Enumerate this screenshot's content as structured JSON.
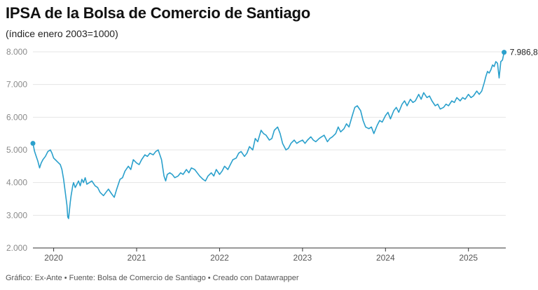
{
  "header": {
    "title": "IPSA de la Bolsa de Comercio de Santiago",
    "subtitle": "(índice enero 2003=1000)"
  },
  "footer": {
    "text": "Gráfico: Ex-Ante • Fuente: Bolsa de Comercio de Santiago • Creado con Datawrapper"
  },
  "colors": {
    "line": "#2aa0cc",
    "grid": "#e5e5e5"
  },
  "chart_data": {
    "type": "line",
    "title": "IPSA de la Bolsa de Comercio de Santiago",
    "subtitle": "(índice enero 2003=1000)",
    "xlabel": "",
    "ylabel": "",
    "grid": true,
    "ylim": [
      2000,
      8000
    ],
    "xlim": [
      2019.75,
      2025.45
    ],
    "y_ticks": [
      2000,
      3000,
      4000,
      5000,
      6000,
      7000,
      8000
    ],
    "y_tick_labels": [
      "2.000",
      "3.000",
      "4.000",
      "5.000",
      "6.000",
      "7.000",
      "8.000"
    ],
    "x_ticks": [
      2020,
      2021,
      2022,
      2023,
      2024,
      2025
    ],
    "x_tick_labels": [
      "2020",
      "2021",
      "2022",
      "2023",
      "2024",
      "2025"
    ],
    "end_label": "7.986,8",
    "series": [
      {
        "x": [
          2019.75,
          2019.77,
          2019.79,
          2019.81,
          2019.83,
          2019.85,
          2019.87,
          2019.9,
          2019.93,
          2019.96,
          2019.98,
          2020.0,
          2020.02,
          2020.04,
          2020.06,
          2020.08,
          2020.1,
          2020.12,
          2020.14,
          2020.16,
          2020.17,
          2020.18,
          2020.19,
          2020.2,
          2020.21,
          2020.22,
          2020.23,
          2020.24,
          2020.26,
          2020.28,
          2020.3,
          2020.32,
          2020.34,
          2020.36,
          2020.38,
          2020.4,
          2020.43,
          2020.46,
          2020.5,
          2020.53,
          2020.56,
          2020.6,
          2020.63,
          2020.66,
          2020.7,
          2020.73,
          2020.76,
          2020.8,
          2020.83,
          2020.86,
          2020.9,
          2020.93,
          2020.96,
          2021.0,
          2021.03,
          2021.06,
          2021.1,
          2021.13,
          2021.16,
          2021.2,
          2021.23,
          2021.26,
          2021.3,
          2021.33,
          2021.35,
          2021.37,
          2021.4,
          2021.43,
          2021.46,
          2021.5,
          2021.53,
          2021.56,
          2021.6,
          2021.63,
          2021.66,
          2021.7,
          2021.73,
          2021.76,
          2021.8,
          2021.83,
          2021.86,
          2021.9,
          2021.93,
          2021.96,
          2022.0,
          2022.03,
          2022.06,
          2022.1,
          2022.13,
          2022.16,
          2022.2,
          2022.23,
          2022.26,
          2022.3,
          2022.33,
          2022.36,
          2022.4,
          2022.43,
          2022.46,
          2022.5,
          2022.53,
          2022.56,
          2022.6,
          2022.63,
          2022.66,
          2022.7,
          2022.73,
          2022.76,
          2022.8,
          2022.83,
          2022.86,
          2022.9,
          2022.93,
          2022.96,
          2023.0,
          2023.03,
          2023.06,
          2023.1,
          2023.13,
          2023.16,
          2023.2,
          2023.23,
          2023.26,
          2023.3,
          2023.33,
          2023.36,
          2023.4,
          2023.43,
          2023.46,
          2023.5,
          2023.53,
          2023.56,
          2023.6,
          2023.63,
          2023.66,
          2023.7,
          2023.73,
          2023.76,
          2023.8,
          2023.83,
          2023.86,
          2023.9,
          2023.93,
          2023.96,
          2024.0,
          2024.03,
          2024.06,
          2024.1,
          2024.13,
          2024.16,
          2024.2,
          2024.23,
          2024.26,
          2024.3,
          2024.33,
          2024.36,
          2024.4,
          2024.43,
          2024.46,
          2024.5,
          2024.53,
          2024.56,
          2024.6,
          2024.63,
          2024.66,
          2024.7,
          2024.73,
          2024.76,
          2024.8,
          2024.83,
          2024.86,
          2024.9,
          2024.93,
          2024.96,
          2025.0,
          2025.03,
          2025.06,
          2025.1,
          2025.13,
          2025.16,
          2025.19,
          2025.21,
          2025.23,
          2025.25,
          2025.27,
          2025.29,
          2025.31,
          2025.33,
          2025.35,
          2025.37,
          2025.39,
          2025.41,
          2025.43
        ],
        "y": [
          5200,
          4950,
          4800,
          4650,
          4450,
          4600,
          4700,
          4800,
          4950,
          5000,
          4900,
          4750,
          4700,
          4650,
          4600,
          4550,
          4400,
          4100,
          3700,
          3300,
          2950,
          2900,
          3150,
          3400,
          3600,
          3750,
          3900,
          4000,
          3850,
          3950,
          4050,
          3900,
          4100,
          4000,
          4150,
          3950,
          4000,
          4050,
          3900,
          3850,
          3700,
          3600,
          3700,
          3800,
          3650,
          3550,
          3800,
          4100,
          4150,
          4350,
          4500,
          4400,
          4700,
          4600,
          4550,
          4700,
          4850,
          4800,
          4900,
          4850,
          4950,
          5000,
          4700,
          4200,
          4050,
          4250,
          4300,
          4250,
          4150,
          4200,
          4300,
          4250,
          4400,
          4300,
          4450,
          4400,
          4300,
          4200,
          4100,
          4050,
          4200,
          4300,
          4200,
          4400,
          4250,
          4350,
          4500,
          4400,
          4550,
          4700,
          4750,
          4900,
          4950,
          4800,
          4900,
          5100,
          5000,
          5350,
          5250,
          5600,
          5500,
          5450,
          5300,
          5350,
          5600,
          5700,
          5500,
          5200,
          5000,
          5050,
          5200,
          5300,
          5200,
          5250,
          5300,
          5200,
          5300,
          5400,
          5300,
          5250,
          5350,
          5400,
          5450,
          5250,
          5350,
          5400,
          5500,
          5700,
          5550,
          5650,
          5800,
          5700,
          6050,
          6300,
          6350,
          6200,
          5900,
          5700,
          5650,
          5700,
          5500,
          5750,
          5900,
          5850,
          6050,
          6150,
          5950,
          6200,
          6300,
          6150,
          6400,
          6500,
          6350,
          6550,
          6450,
          6500,
          6700,
          6550,
          6750,
          6600,
          6650,
          6500,
          6350,
          6400,
          6250,
          6300,
          6400,
          6350,
          6500,
          6450,
          6600,
          6500,
          6600,
          6550,
          6700,
          6600,
          6650,
          6800,
          6700,
          6800,
          7050,
          7250,
          7400,
          7350,
          7450,
          7600,
          7550,
          7700,
          7650,
          7200,
          7700,
          7750,
          7986.8
        ]
      }
    ]
  }
}
